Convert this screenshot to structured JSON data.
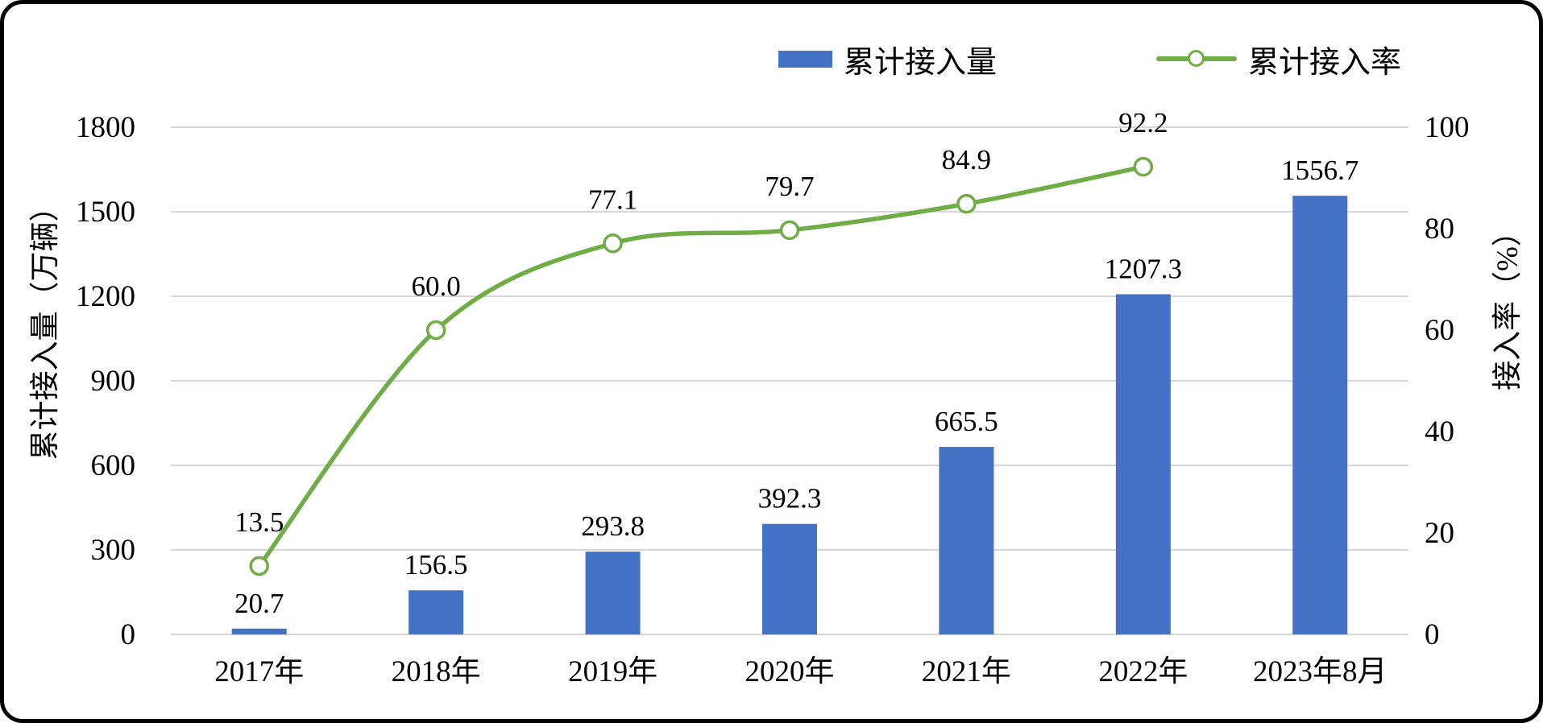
{
  "chart_data": {
    "type": "bar+line-combo",
    "categories": [
      "2017年",
      "2018年",
      "2019年",
      "2020年",
      "2021年",
      "2022年",
      "2023年8月"
    ],
    "series": [
      {
        "name": "累计接入量",
        "type": "bar",
        "axis": "left",
        "color": "#4472C4",
        "values": [
          20.7,
          156.5,
          293.8,
          392.3,
          665.5,
          1207.3,
          1556.7
        ],
        "data_labels": [
          "20.7",
          "156.5",
          "293.8",
          "392.3",
          "665.5",
          "1207.3",
          "1556.7"
        ]
      },
      {
        "name": "累计接入率",
        "type": "line",
        "axis": "right",
        "color": "#70AD47",
        "marker": "circle-white-fill",
        "values": [
          13.5,
          60.0,
          77.1,
          79.7,
          84.9,
          92.2,
          null
        ],
        "data_labels": [
          "13.5",
          "60.0",
          "77.1",
          "79.7",
          "84.9",
          "92.2"
        ]
      }
    ],
    "left_axis": {
      "title": "累计接入量（万辆）",
      "min": 0,
      "max": 1800,
      "ticks": [
        0,
        300,
        600,
        900,
        1200,
        1500,
        1800
      ]
    },
    "right_axis": {
      "title": "接入率（%）",
      "min": 0,
      "max": 100,
      "ticks": [
        0,
        20,
        40,
        60,
        80,
        100
      ]
    },
    "legend_position": "top",
    "grid": true,
    "gridline_color": "#D6D6D6",
    "background_color": "#FFFFFF"
  }
}
